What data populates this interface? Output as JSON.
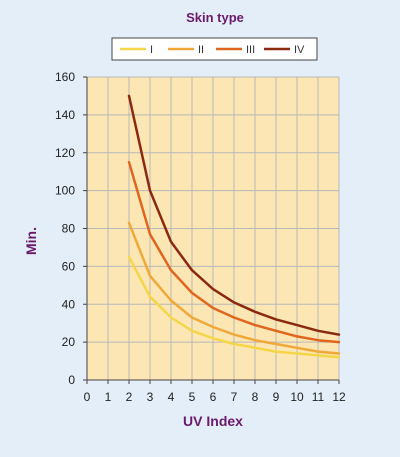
{
  "chart_data": {
    "type": "line",
    "title": "Skin type",
    "xlabel": "UV Index",
    "ylabel": "Min.",
    "xlim": [
      0,
      12
    ],
    "ylim": [
      0,
      160
    ],
    "x_ticks": [
      "0",
      "1",
      "2",
      "3",
      "4",
      "5",
      "6",
      "7",
      "8",
      "9",
      "10",
      "11",
      "12"
    ],
    "y_ticks": [
      "0",
      "20",
      "40",
      "60",
      "80",
      "100",
      "120",
      "140",
      "160"
    ],
    "highlighted_x_tick": "4",
    "grid": true,
    "legend_position": "top",
    "x": [
      2,
      3,
      4,
      5,
      6,
      7,
      8,
      9,
      10,
      11,
      12
    ],
    "series": [
      {
        "name": "I",
        "color": "#f5d648",
        "values": [
          65,
          44,
          33,
          26,
          22,
          19,
          17,
          15,
          14,
          13,
          12
        ]
      },
      {
        "name": "II",
        "color": "#f0a938",
        "values": [
          83,
          55,
          42,
          33,
          28,
          24,
          21,
          19,
          17,
          15,
          14
        ]
      },
      {
        "name": "III",
        "color": "#e0651d",
        "values": [
          115,
          77,
          58,
          46,
          38,
          33,
          29,
          26,
          23,
          21,
          20
        ]
      },
      {
        "name": "IV",
        "color": "#8c2a0f",
        "values": [
          150,
          100,
          73,
          58,
          48,
          41,
          36,
          32,
          29,
          26,
          24
        ]
      }
    ]
  }
}
